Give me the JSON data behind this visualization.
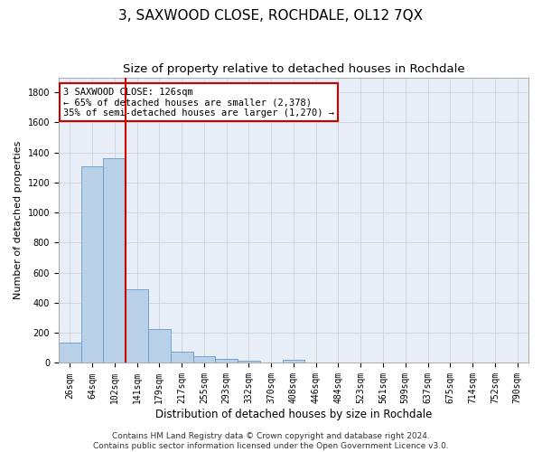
{
  "title": "3, SAXWOOD CLOSE, ROCHDALE, OL12 7QX",
  "subtitle": "Size of property relative to detached houses in Rochdale",
  "xlabel": "Distribution of detached houses by size in Rochdale",
  "ylabel": "Number of detached properties",
  "bar_color": "#b8d0e8",
  "bar_edge_color": "#6699cc",
  "vline_color": "#cc0000",
  "annotation_text": "3 SAXWOOD CLOSE: 126sqm\n← 65% of detached houses are smaller (2,378)\n35% of semi-detached houses are larger (1,270) →",
  "annotation_box_color": "#cc0000",
  "categories": [
    "26sqm",
    "64sqm",
    "102sqm",
    "141sqm",
    "179sqm",
    "217sqm",
    "255sqm",
    "293sqm",
    "332sqm",
    "370sqm",
    "408sqm",
    "446sqm",
    "484sqm",
    "523sqm",
    "561sqm",
    "599sqm",
    "637sqm",
    "675sqm",
    "714sqm",
    "752sqm",
    "790sqm"
  ],
  "values": [
    135,
    1305,
    1360,
    490,
    225,
    75,
    43,
    27,
    12,
    0,
    18,
    0,
    0,
    0,
    0,
    0,
    0,
    0,
    0,
    0,
    0
  ],
  "ylim": [
    0,
    1900
  ],
  "yticks": [
    0,
    200,
    400,
    600,
    800,
    1000,
    1200,
    1400,
    1600,
    1800
  ],
  "background_color": "#e8eef8",
  "grid_color": "#cccccc",
  "footer": "Contains HM Land Registry data © Crown copyright and database right 2024.\nContains public sector information licensed under the Open Government Licence v3.0.",
  "title_fontsize": 11,
  "subtitle_fontsize": 9.5,
  "xlabel_fontsize": 8.5,
  "ylabel_fontsize": 8,
  "tick_fontsize": 7,
  "footer_fontsize": 6.5,
  "annot_fontsize": 7.5
}
